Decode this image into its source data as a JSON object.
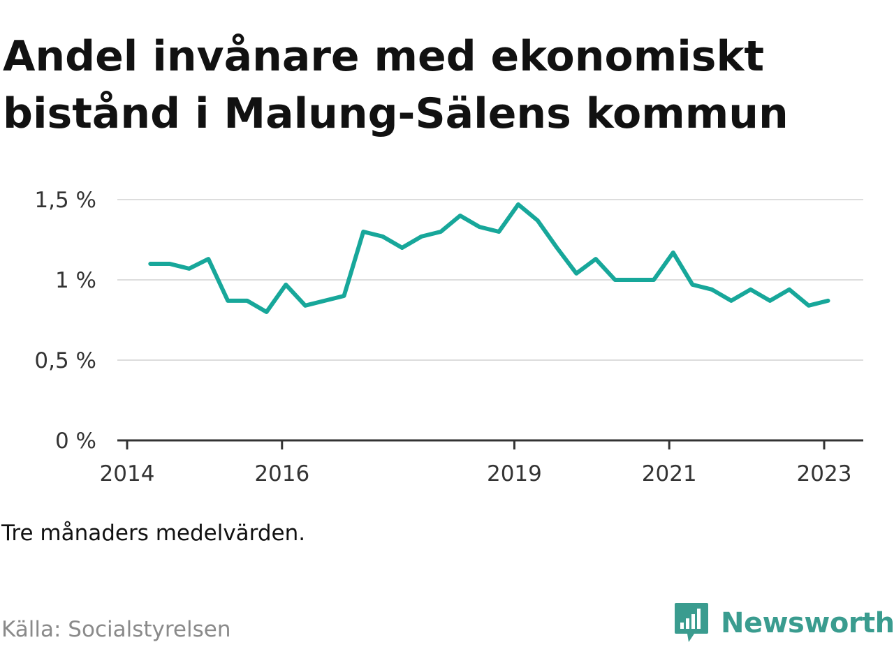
{
  "chart_data": {
    "type": "line",
    "title": "Andel invånare med ekonomiskt bistånd i Malung-Sälens kommun",
    "xlabel": "",
    "ylabel": "",
    "note": "Tre månaders medelvärden.",
    "source": "Källa: Socialstyrelsen",
    "x_ticks": [
      {
        "label": "2014",
        "value": 2014.0
      },
      {
        "label": "2016",
        "value": 2016.0
      },
      {
        "label": "2019",
        "value": 2019.0
      },
      {
        "label": "2021",
        "value": 2021.0
      },
      {
        "label": "2023",
        "value": 2023.0
      }
    ],
    "y_ticks": [
      {
        "label": "0 %",
        "value": 0
      },
      {
        "label": "0,5 %",
        "value": 0.5
      },
      {
        "label": "1 %",
        "value": 1.0
      },
      {
        "label": "1,5 %",
        "value": 1.5
      }
    ],
    "xlim": [
      2014.0,
      2023.5
    ],
    "ylim": [
      0,
      1.5
    ],
    "grid": true,
    "line_color": "#17a79a",
    "series": [
      {
        "x": [
          2014.3,
          2014.55,
          2014.8,
          2015.05,
          2015.3,
          2015.55,
          2015.8,
          2016.05,
          2016.3,
          2016.55,
          2016.8,
          2017.05,
          2017.3,
          2017.55,
          2017.8,
          2018.05,
          2018.3,
          2018.55,
          2018.8,
          2019.05,
          2019.3,
          2019.55,
          2019.8,
          2020.05,
          2020.3,
          2020.55,
          2020.8,
          2021.05,
          2021.3,
          2021.55,
          2021.8,
          2022.05,
          2022.3,
          2022.55,
          2022.8,
          2023.05
        ],
        "values": [
          1.1,
          1.1,
          1.07,
          1.13,
          0.87,
          0.87,
          0.8,
          0.97,
          0.84,
          0.87,
          0.9,
          1.3,
          1.27,
          1.2,
          1.27,
          1.3,
          1.4,
          1.33,
          1.3,
          1.47,
          1.37,
          1.2,
          1.04,
          1.13,
          1.0,
          1.0,
          1.0,
          1.17,
          0.97,
          0.94,
          0.87,
          0.94,
          0.87,
          0.94,
          0.84,
          0.87
        ]
      }
    ]
  },
  "brand": {
    "name": "Newsworthy",
    "icon": "newsworthy-logo-icon",
    "color": "#3a9c8f"
  }
}
